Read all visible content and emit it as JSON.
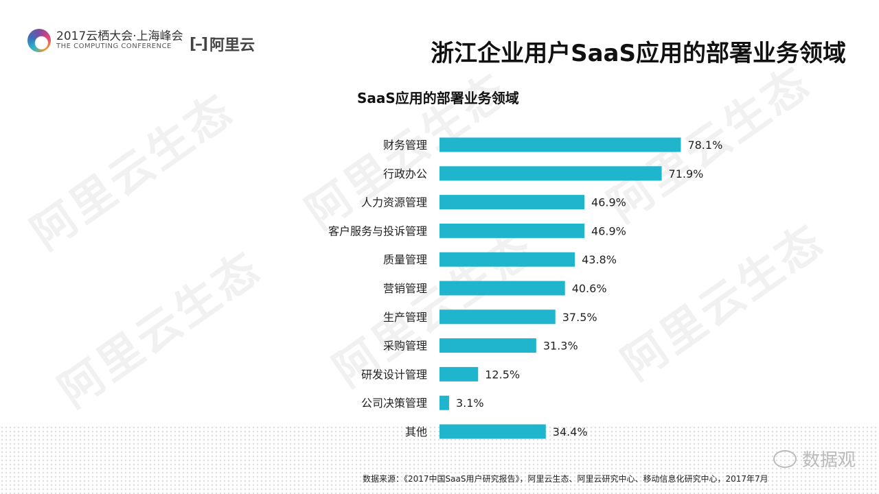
{
  "header": {
    "conference_title": "2017云栖大会·上海峰会",
    "conference_subtitle": "THE COMPUTING CONFERENCE",
    "brand_mark": "[–]",
    "brand_name": "阿里云",
    "page_title": "浙江企业用户SaaS应用的部署业务领域"
  },
  "watermark_text": "阿里云生态",
  "wechat": {
    "icon": "wechat-icon",
    "label": "数据观"
  },
  "footer": {
    "source": "数据来源：《2017中国SaaS用户研究报告》，阿里云生态、阿里云研究中心、移动信息化研究中心，2017年7月"
  },
  "colors": {
    "bar": "#1fb5cd",
    "text": "#222222"
  },
  "chart_data": {
    "type": "bar",
    "orientation": "horizontal",
    "title": "SaaS应用的部署业务领域",
    "categories": [
      "财务管理",
      "行政办公",
      "人力资源管理",
      "客户服务与投诉管理",
      "质量管理",
      "营销管理",
      "生产管理",
      "采购管理",
      "研发设计管理",
      "公司决策管理",
      "其他"
    ],
    "values": [
      78.1,
      71.9,
      46.9,
      46.9,
      43.8,
      40.6,
      37.5,
      31.3,
      12.5,
      3.1,
      34.4
    ],
    "value_labels": [
      "78.1%",
      "71.9%",
      "46.9%",
      "46.9%",
      "43.8%",
      "40.6%",
      "37.5%",
      "31.3%",
      "12.5%",
      "3.1%",
      "34.4%"
    ],
    "unit": "%",
    "xlim": [
      0,
      100
    ],
    "grid": false,
    "legend": "none"
  }
}
